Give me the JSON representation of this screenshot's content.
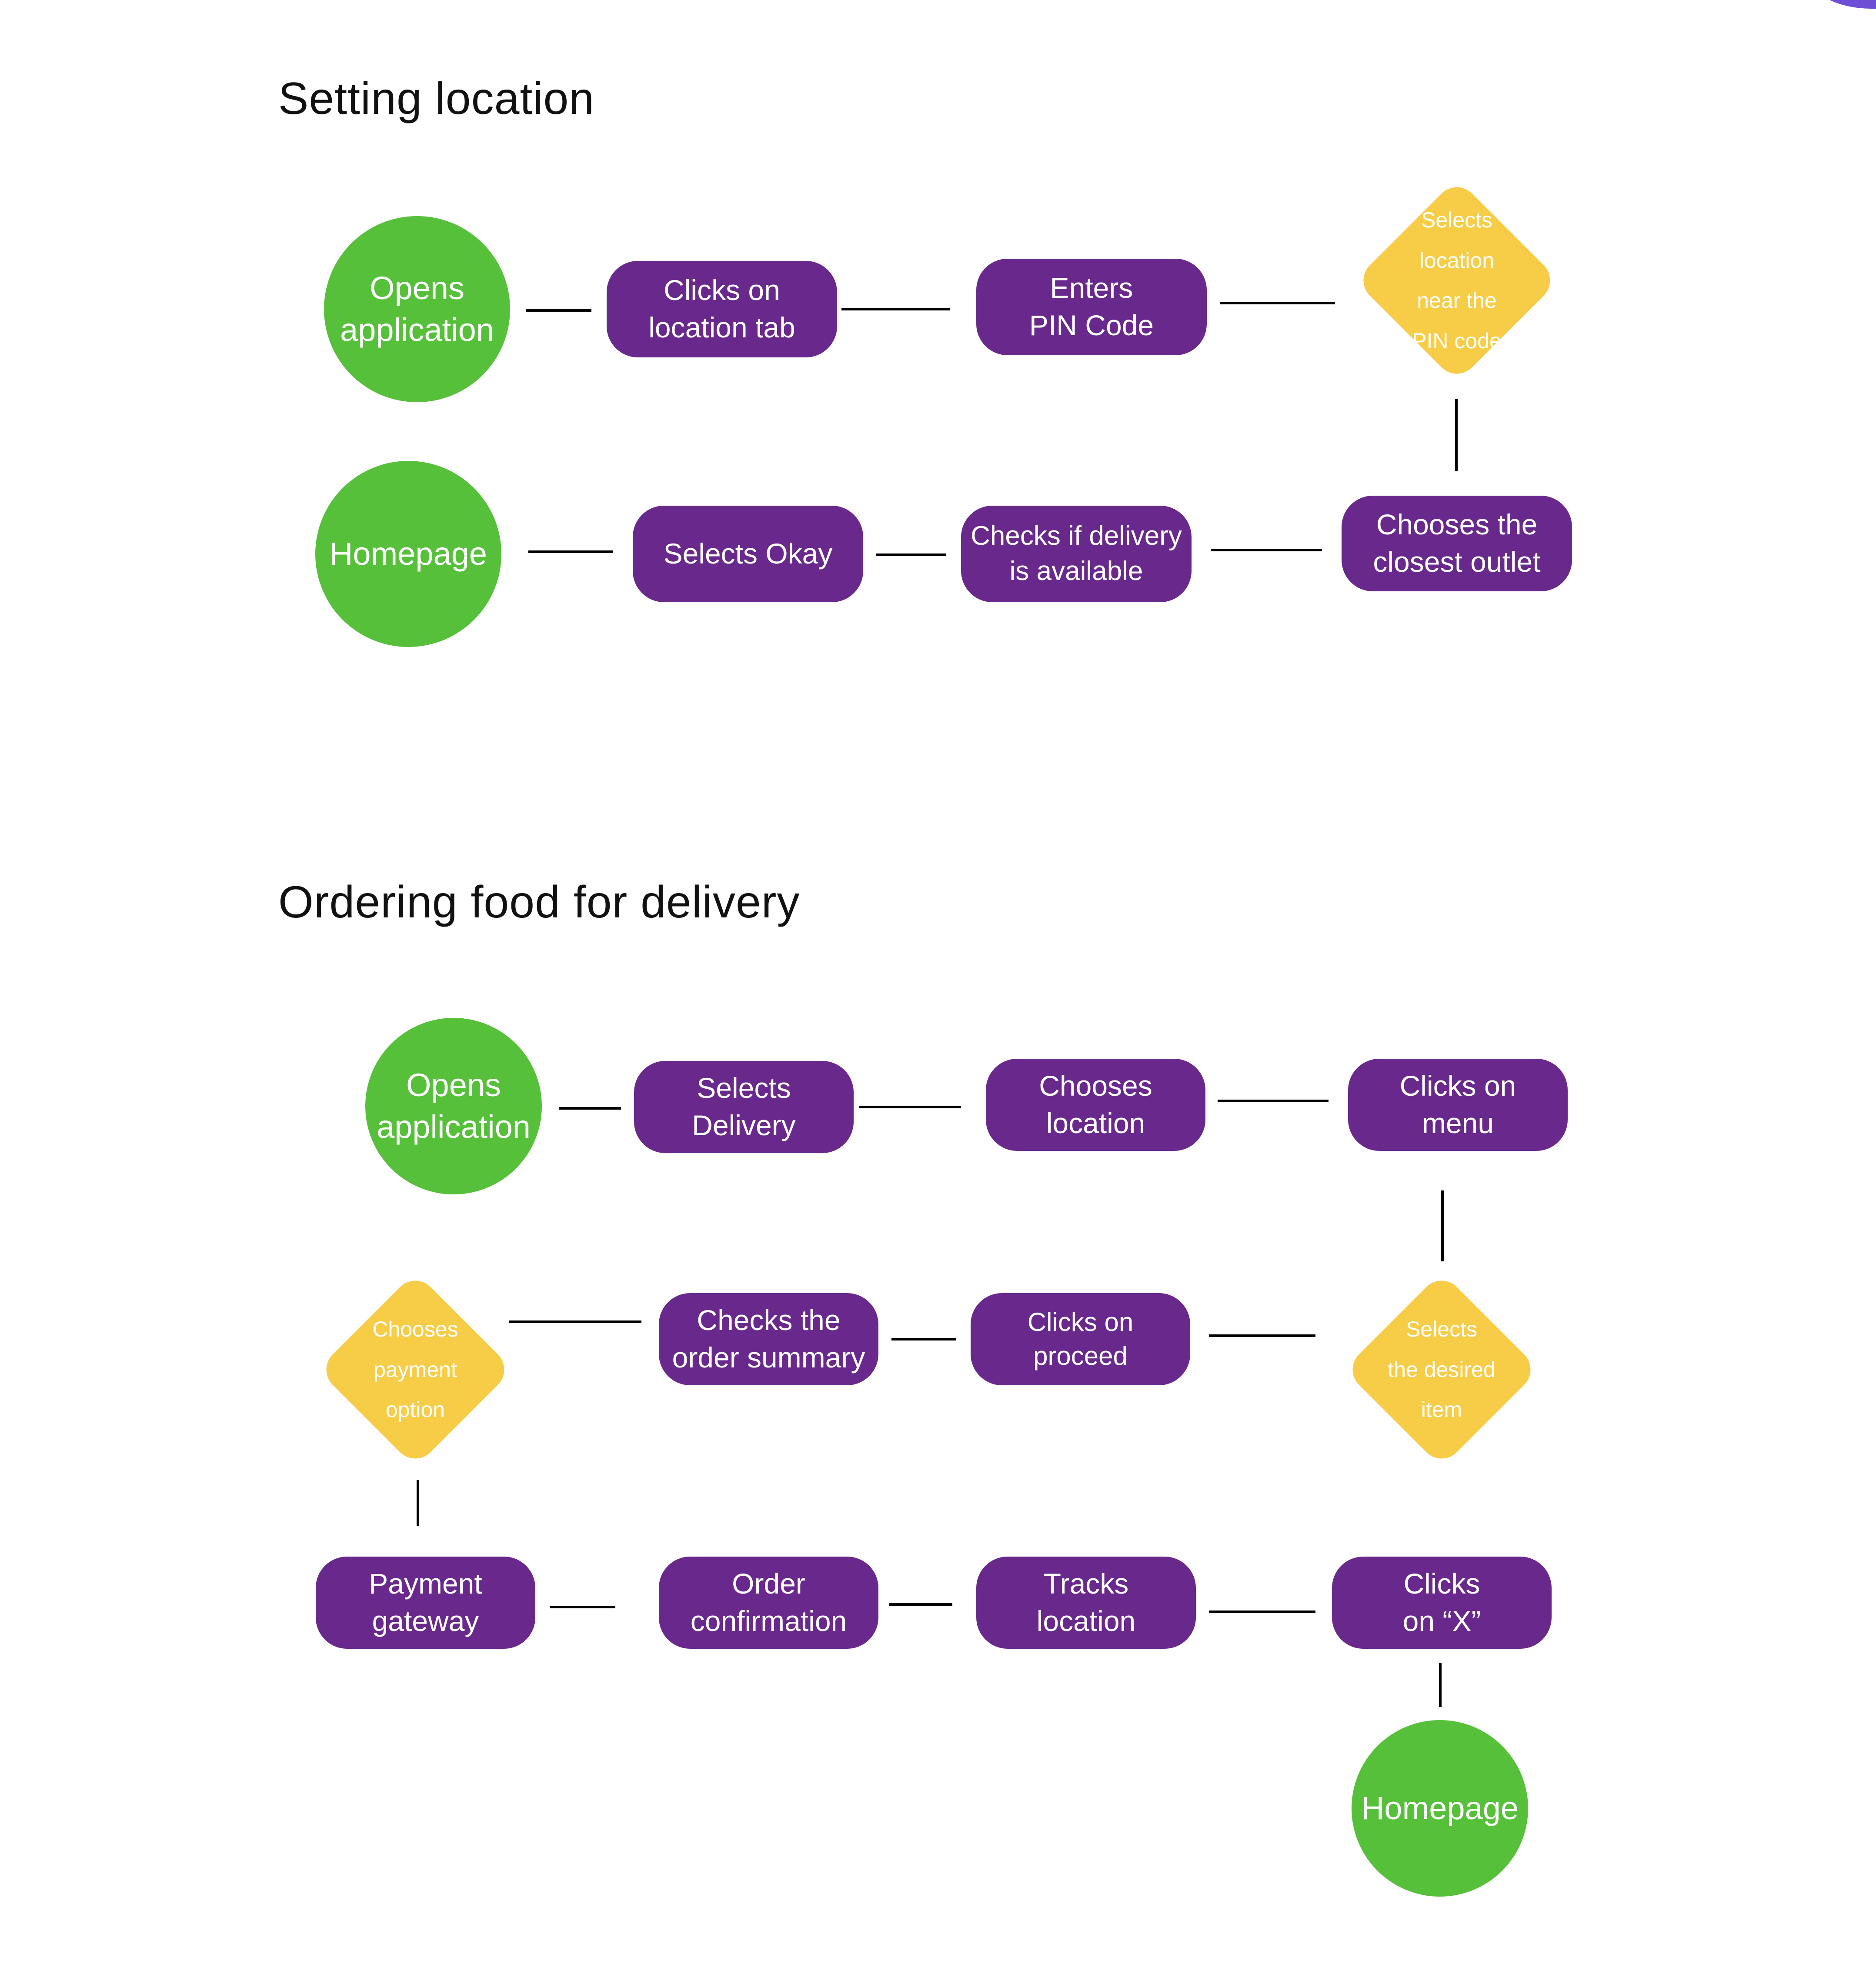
{
  "colors": {
    "terminal": "#57c03b",
    "process": "#69298c",
    "decision": "#f7cd47",
    "text": "#ffffff",
    "title": "#111111"
  },
  "sections": [
    {
      "title": "Setting location",
      "nodes": [
        {
          "id": "opens-application",
          "shape": "circle",
          "label": "Opens\napplication"
        },
        {
          "id": "clicks-location-tab",
          "shape": "rounded-rect",
          "label": "Clicks on\nlocation tab"
        },
        {
          "id": "enters-pin-code",
          "shape": "rounded-rect",
          "label": "Enters\nPIN Code"
        },
        {
          "id": "selects-location",
          "shape": "diamond",
          "label": "Selects\nlocation\nnear the\nPIN code"
        },
        {
          "id": "chooses-closest-outlet",
          "shape": "rounded-rect",
          "label": "Chooses the\nclosest outlet"
        },
        {
          "id": "checks-delivery",
          "shape": "rounded-rect",
          "label": "Checks if delivery\nis available"
        },
        {
          "id": "selects-okay",
          "shape": "rounded-rect",
          "label": "Selects Okay"
        },
        {
          "id": "homepage",
          "shape": "circle",
          "label": "Homepage"
        }
      ],
      "edges": [
        [
          "opens-application",
          "clicks-location-tab"
        ],
        [
          "clicks-location-tab",
          "enters-pin-code"
        ],
        [
          "enters-pin-code",
          "selects-location"
        ],
        [
          "selects-location",
          "chooses-closest-outlet"
        ],
        [
          "chooses-closest-outlet",
          "checks-delivery"
        ],
        [
          "checks-delivery",
          "selects-okay"
        ],
        [
          "selects-okay",
          "homepage"
        ]
      ]
    },
    {
      "title": "Ordering food for delivery",
      "nodes": [
        {
          "id": "opens-application",
          "shape": "circle",
          "label": "Opens\napplication"
        },
        {
          "id": "selects-delivery",
          "shape": "rounded-rect",
          "label": "Selects\nDelivery"
        },
        {
          "id": "chooses-location",
          "shape": "rounded-rect",
          "label": "Chooses\nlocation"
        },
        {
          "id": "clicks-menu",
          "shape": "rounded-rect",
          "label": "Clicks on\nmenu"
        },
        {
          "id": "selects-item",
          "shape": "diamond",
          "label": "Selects\nthe desired\nitem"
        },
        {
          "id": "clicks-proceed",
          "shape": "rounded-rect",
          "label": "Clicks on\nproceed"
        },
        {
          "id": "checks-order-summary",
          "shape": "rounded-rect",
          "label": "Checks the\norder summary"
        },
        {
          "id": "chooses-payment",
          "shape": "diamond",
          "label": "Chooses\npayment\noption"
        },
        {
          "id": "payment-gateway",
          "shape": "rounded-rect",
          "label": "Payment\ngateway"
        },
        {
          "id": "order-confirmation",
          "shape": "rounded-rect",
          "label": "Order\nconfirmation"
        },
        {
          "id": "tracks-location",
          "shape": "rounded-rect",
          "label": "Tracks\nlocation"
        },
        {
          "id": "clicks-x",
          "shape": "rounded-rect",
          "label": "Clicks\non “X”"
        },
        {
          "id": "homepage",
          "shape": "circle",
          "label": "Homepage"
        }
      ],
      "edges": [
        [
          "opens-application",
          "selects-delivery"
        ],
        [
          "selects-delivery",
          "chooses-location"
        ],
        [
          "chooses-location",
          "clicks-menu"
        ],
        [
          "clicks-menu",
          "selects-item"
        ],
        [
          "selects-item",
          "clicks-proceed"
        ],
        [
          "clicks-proceed",
          "checks-order-summary"
        ],
        [
          "checks-order-summary",
          "chooses-payment"
        ],
        [
          "chooses-payment",
          "payment-gateway"
        ],
        [
          "payment-gateway",
          "order-confirmation"
        ],
        [
          "order-confirmation",
          "tracks-location"
        ],
        [
          "tracks-location",
          "clicks-x"
        ],
        [
          "clicks-x",
          "homepage"
        ]
      ]
    }
  ]
}
